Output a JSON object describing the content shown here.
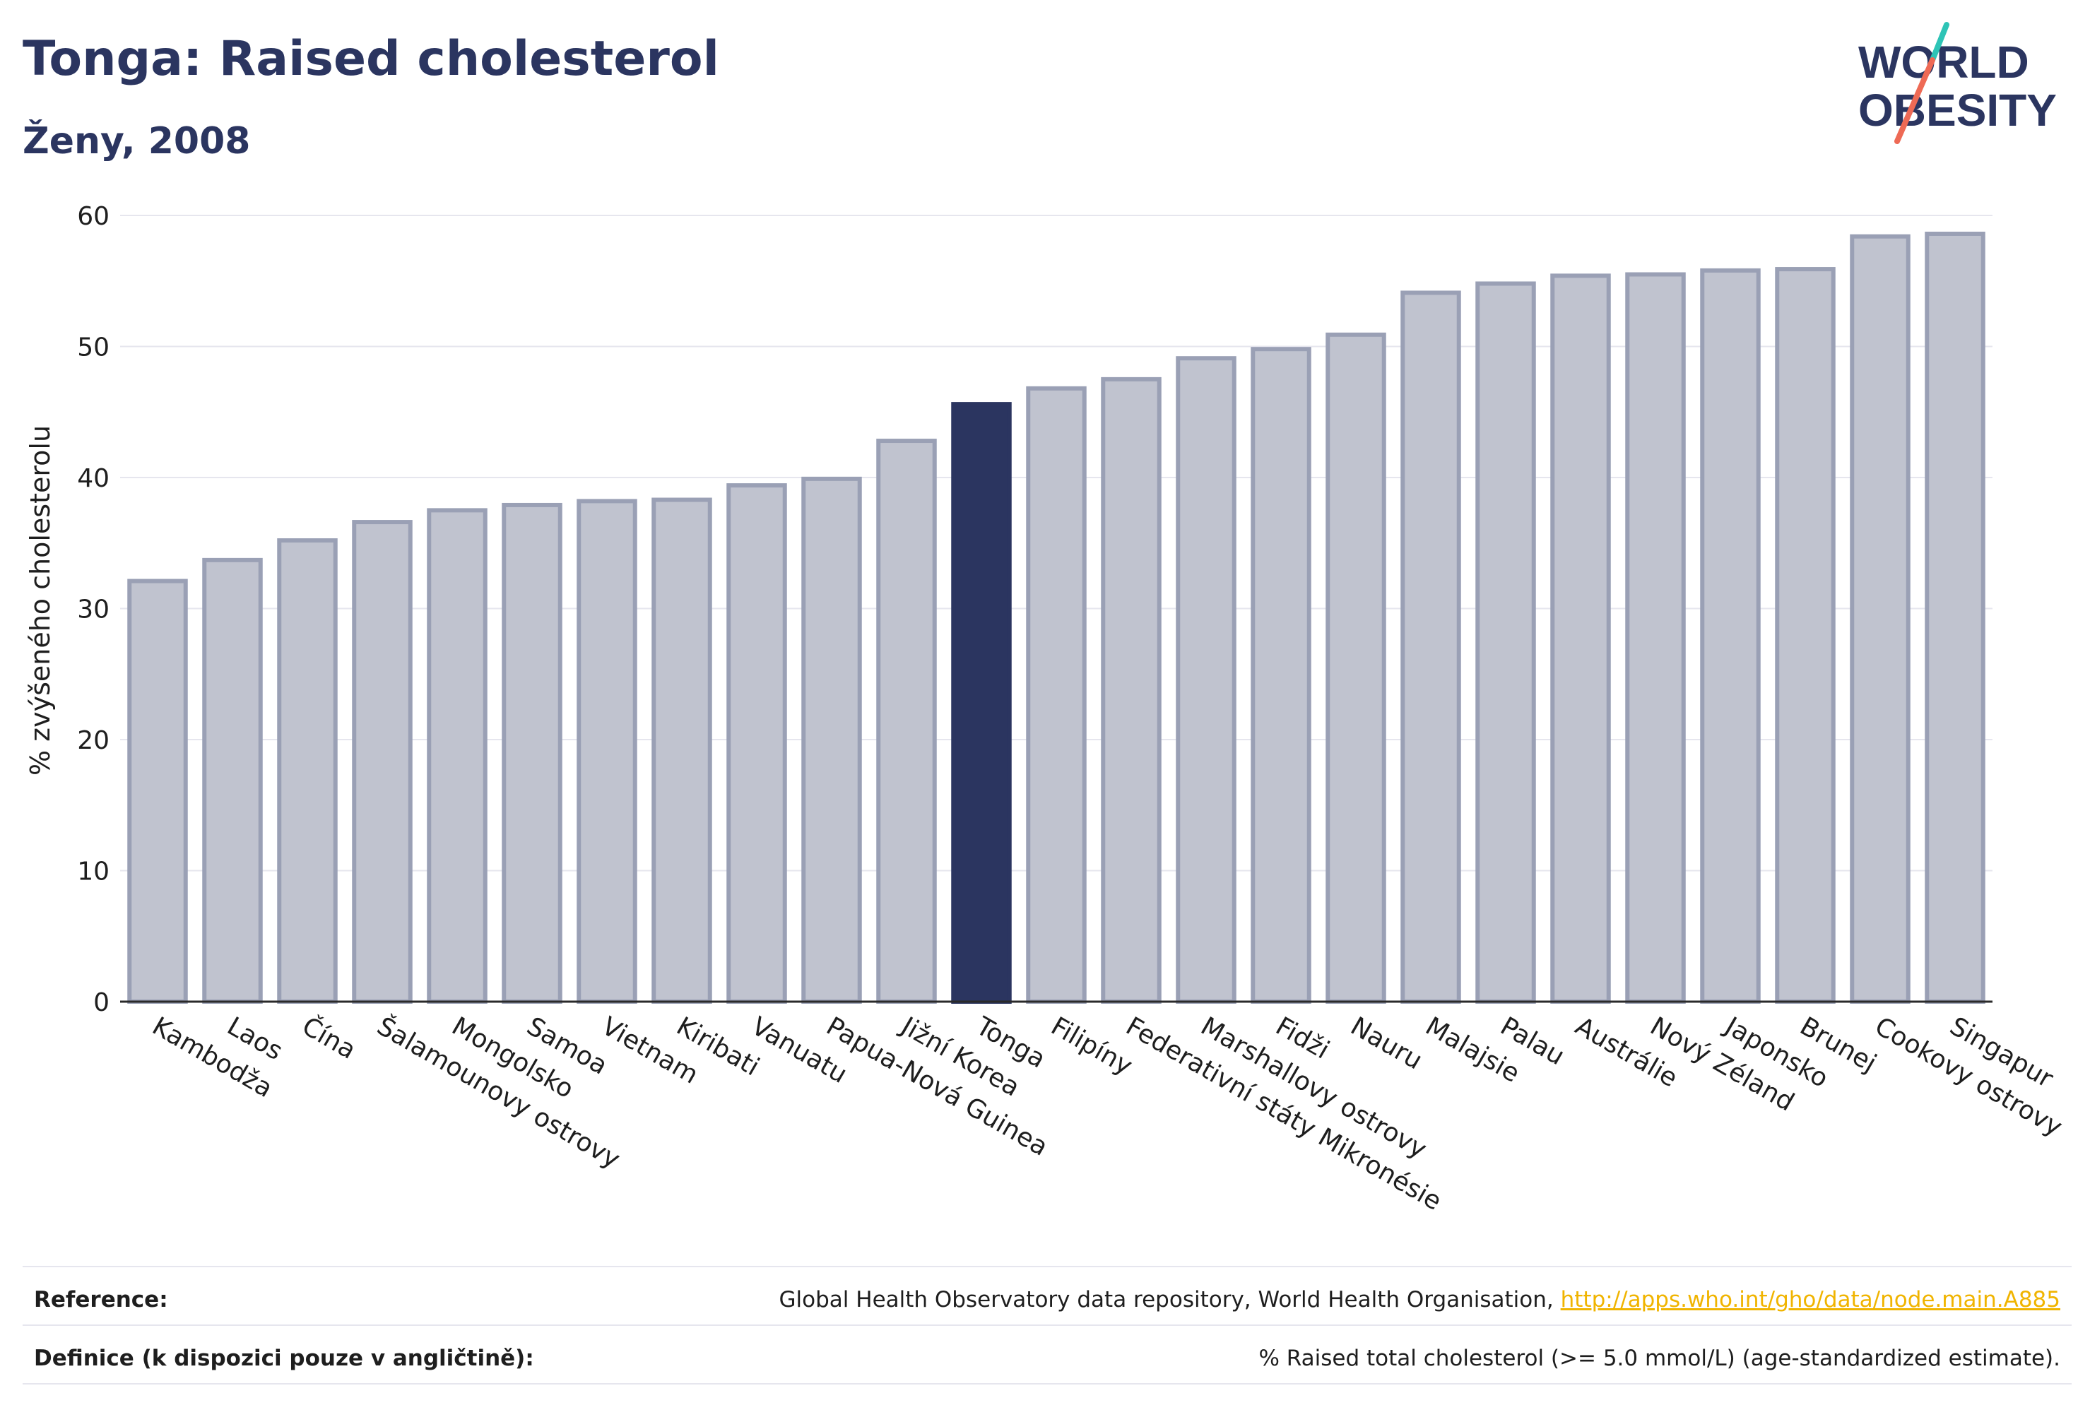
{
  "header": {
    "title": "Tonga: Raised cholesterol",
    "subtitle": "Ženy, 2008"
  },
  "logo": {
    "line1": "WORLD",
    "line2": "OBESITY"
  },
  "chart_data": {
    "type": "bar",
    "title": "Tonga: Raised cholesterol",
    "subtitle": "Ženy, 2008",
    "ylabel": "% zvýšeného cholesterolu",
    "xlabel": "",
    "ylim": [
      0,
      60
    ],
    "yticks": [
      0,
      10,
      20,
      30,
      40,
      50,
      60
    ],
    "grid": true,
    "highlight": "Tonga",
    "colors": {
      "bar": "#c0c3cf",
      "bar_edge": "#9aa0b5",
      "highlight": "#2b3560"
    },
    "categories": [
      "Kambodža",
      "Laos",
      "Čína",
      "Šalamounovy ostrovy",
      "Mongolsko",
      "Samoa",
      "Vietnam",
      "Kiribati",
      "Vanuatu",
      "Papua-Nová Guinea",
      "Jižní Korea",
      "Tonga",
      "Filipíny",
      "Federativní státy Mikronésie",
      "Marshallovy ostrovy",
      "Fidži",
      "Nauru",
      "Malajsie",
      "Palau",
      "Austrálie",
      "Nový Zéland",
      "Japonsko",
      "Brunej",
      "Cookovy ostrovy",
      "Singapur"
    ],
    "values": [
      32.1,
      33.7,
      35.2,
      36.6,
      37.5,
      37.9,
      38.2,
      38.3,
      39.4,
      39.9,
      42.8,
      45.6,
      46.8,
      47.5,
      49.1,
      49.8,
      50.9,
      54.1,
      54.8,
      55.4,
      55.5,
      55.8,
      55.9,
      58.4,
      58.6
    ]
  },
  "footer": {
    "reference_label": "Reference:",
    "reference_text": "Global Health Observatory data repository, World Health Organisation, ",
    "reference_link": "http://apps.who.int/gho/data/node.main.A885",
    "definition_label": "Definice (k dispozici pouze v angličtině):",
    "definition_text": "% Raised total cholesterol (>= 5.0 mmol/L) (age-standardized estimate)."
  }
}
